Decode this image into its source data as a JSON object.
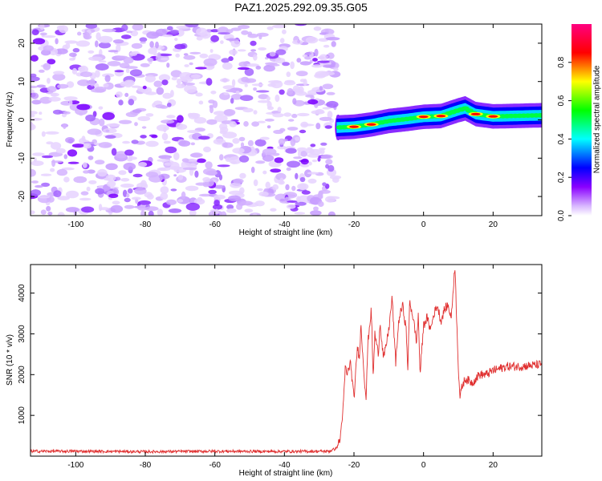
{
  "title": "PAZ1.2025.292.09.35.G05",
  "chart_data": [
    {
      "type": "heatmap",
      "xlabel": "Height of straight line (km)",
      "ylabel": "Frequency (Hz)",
      "xlim": [
        -113,
        34
      ],
      "ylim": [
        -25,
        25
      ],
      "xticks": [
        -100,
        -80,
        -60,
        -40,
        -20,
        0,
        20
      ],
      "yticks": [
        -20,
        -10,
        0,
        10,
        20
      ],
      "colorbar": {
        "label": "Normalized spectral amplitude",
        "range": [
          0.0,
          1.0
        ],
        "ticks": [
          0.0,
          0.2,
          0.4,
          0.6,
          0.8
        ],
        "colors": [
          "#ffffff",
          "#d9b8ff",
          "#8a00ff",
          "#0000ff",
          "#00ffff",
          "#00ff00",
          "#ffff00",
          "#ff0000",
          "#ff0080"
        ]
      },
      "noise_region": {
        "x": [
          -113,
          -25
        ],
        "amplitude_range": [
          0.0,
          0.2
        ]
      },
      "signal_trace": {
        "x": [
          -25,
          -20,
          -15,
          -10,
          -5,
          0,
          5,
          10,
          12,
          15,
          20,
          25,
          34
        ],
        "frequency": [
          -2.0,
          -1.8,
          -1.2,
          -0.3,
          0.2,
          0.8,
          1.0,
          2.5,
          3.0,
          1.5,
          0.9,
          1.0,
          1.2
        ],
        "peak_amplitude": [
          0.4,
          0.7,
          0.9,
          0.6,
          0.5,
          0.8,
          0.9,
          0.6,
          0.6,
          0.7,
          0.9,
          0.6,
          0.5
        ]
      }
    },
    {
      "type": "line",
      "xlabel": "Height of straight line (km)",
      "ylabel": "SNR (10 * v/v)",
      "xlim": [
        -113,
        34
      ],
      "ylim": [
        0,
        4700
      ],
      "xticks": [
        -100,
        -80,
        -60,
        -40,
        -20,
        0,
        20
      ],
      "yticks": [
        1000,
        2000,
        3000,
        4000
      ],
      "series": [
        {
          "color": "#e03030",
          "x": [
            -113,
            -100,
            -80,
            -60,
            -40,
            -27,
            -25,
            -24,
            -23,
            -22.5,
            -22,
            -21,
            -20,
            -19,
            -18.5,
            -18,
            -17,
            -16.5,
            -16,
            -15,
            -14.5,
            -14,
            -13,
            -12.5,
            -12,
            -11.5,
            -11,
            -10,
            -9,
            -8.5,
            -8,
            -7.5,
            -7,
            -6,
            -5,
            -4.5,
            -4,
            -3,
            -2,
            -1.5,
            -1,
            0,
            1,
            2,
            3,
            4,
            5,
            6,
            7,
            8,
            9,
            10,
            10.5,
            11,
            12,
            14,
            16,
            18,
            20,
            24,
            28,
            34
          ],
          "y": [
            120,
            120,
            110,
            120,
            115,
            120,
            200,
            400,
            1300,
            2200,
            2000,
            2300,
            1400,
            2700,
            2400,
            3200,
            1900,
            1400,
            2800,
            3600,
            1900,
            3000,
            2500,
            3300,
            2800,
            2400,
            2600,
            3100,
            3900,
            3000,
            2300,
            2900,
            3400,
            3700,
            3100,
            2100,
            3800,
            3400,
            2800,
            3500,
            2000,
            3200,
            3400,
            3100,
            3500,
            3700,
            3300,
            3600,
            3700,
            3400,
            4700,
            2200,
            1400,
            1700,
            1900,
            1800,
            2000,
            2000,
            2100,
            2200,
            2200,
            2250
          ]
        }
      ]
    }
  ]
}
